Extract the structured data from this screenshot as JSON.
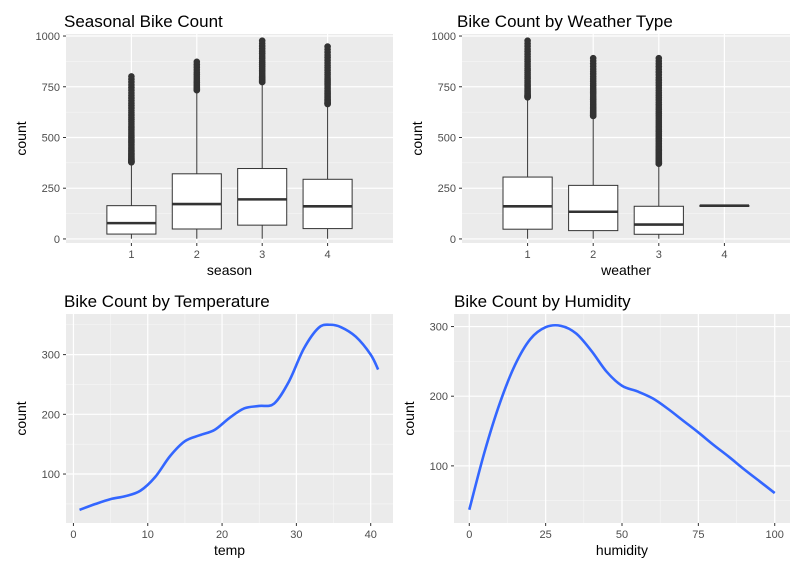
{
  "chart_data": [
    {
      "type": "box",
      "title": "Seasonal Bike Count",
      "xlabel": "season",
      "ylabel": "count",
      "categories": [
        "1",
        "2",
        "3",
        "4"
      ],
      "yticks": [
        0,
        250,
        500,
        750,
        1000
      ],
      "yticklabels": [
        "0",
        "250",
        "500",
        "750",
        "1000"
      ],
      "ylim": [
        -20,
        1010
      ],
      "boxes": [
        {
          "category": "1",
          "whisker_low": 1,
          "q1": 24,
          "median": 78,
          "q3": 164,
          "whisker_high": 370,
          "outlier_max": 801
        },
        {
          "category": "2",
          "whisker_low": 1,
          "q1": 49,
          "median": 172,
          "q3": 321,
          "whisker_high": 725,
          "outlier_max": 873
        },
        {
          "category": "3",
          "whisker_low": 1,
          "q1": 68,
          "median": 195,
          "q3": 347,
          "whisker_high": 765,
          "outlier_max": 977
        },
        {
          "category": "4",
          "whisker_low": 1,
          "q1": 51,
          "median": 161,
          "q3": 294,
          "whisker_high": 657,
          "outlier_max": 948
        }
      ]
    },
    {
      "type": "box",
      "title": "Bike Count by Weather Type",
      "xlabel": "weather",
      "ylabel": "count",
      "categories": [
        "1",
        "2",
        "3",
        "4"
      ],
      "yticks": [
        0,
        250,
        500,
        750,
        1000
      ],
      "yticklabels": [
        "0",
        "250",
        "500",
        "750",
        "1000"
      ],
      "ylim": [
        -20,
        1010
      ],
      "boxes": [
        {
          "category": "1",
          "whisker_low": 1,
          "q1": 48,
          "median": 161,
          "q3": 305,
          "whisker_high": 690,
          "outlier_max": 977
        },
        {
          "category": "2",
          "whisker_low": 1,
          "q1": 41,
          "median": 134,
          "q3": 264,
          "whisker_high": 598,
          "outlier_max": 891
        },
        {
          "category": "3",
          "whisker_low": 1,
          "q1": 23,
          "median": 71,
          "q3": 161,
          "whisker_high": 363,
          "outlier_max": 891
        },
        {
          "category": "4",
          "whisker_low": 164,
          "q1": 164,
          "median": 164,
          "q3": 164,
          "whisker_high": 164,
          "outlier_max": 164
        }
      ]
    },
    {
      "type": "line",
      "title": "Bike Count by Temperature",
      "xlabel": "temp",
      "ylabel": "count",
      "xticks": [
        0,
        10,
        20,
        30,
        40
      ],
      "xticklabels": [
        "0",
        "10",
        "20",
        "30",
        "40"
      ],
      "yticks": [
        100,
        200,
        300
      ],
      "yticklabels": [
        "100",
        "200",
        "300"
      ],
      "xlim": [
        -1,
        43
      ],
      "ylim": [
        18,
        368
      ],
      "color": "#3366FF",
      "x": [
        0.82,
        3,
        5,
        7,
        9,
        11,
        13,
        15,
        17,
        19,
        21,
        23,
        25,
        27,
        29,
        31,
        33,
        34.5,
        36,
        38,
        40,
        41
      ],
      "y": [
        40,
        50,
        58,
        63,
        72,
        95,
        130,
        155,
        165,
        174,
        194,
        210,
        214,
        218,
        255,
        310,
        345,
        350,
        346,
        330,
        300,
        275
      ]
    },
    {
      "type": "line",
      "title": "Bike Count by Humidity",
      "xlabel": "humidity",
      "ylabel": "count",
      "xticks": [
        0,
        25,
        50,
        75,
        100
      ],
      "xticklabels": [
        "0",
        "25",
        "50",
        "75",
        "100"
      ],
      "yticks": [
        100,
        200,
        300
      ],
      "yticklabels": [
        "100",
        "200",
        "300"
      ],
      "xlim": [
        -5,
        105
      ],
      "ylim": [
        18,
        318
      ],
      "color": "#3366FF",
      "x": [
        0,
        5,
        10,
        15,
        20,
        25,
        30,
        35,
        40,
        45,
        50,
        55,
        60,
        65,
        70,
        75,
        80,
        85,
        90,
        95,
        100
      ],
      "y": [
        37,
        120,
        190,
        245,
        282,
        299,
        301,
        290,
        265,
        235,
        215,
        207,
        197,
        182,
        165,
        148,
        130,
        113,
        95,
        78,
        61
      ]
    }
  ]
}
